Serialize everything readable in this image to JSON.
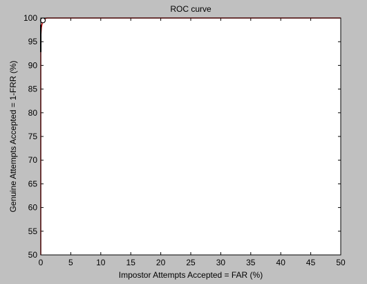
{
  "chart_data": {
    "type": "line",
    "title": "ROC curve",
    "xlabel": "Impostor Attempts Accepted = FAR (%)",
    "ylabel": "Genuine Attempts Accepted = 1-FRR (%)",
    "xlim": [
      0,
      50
    ],
    "ylim": [
      50,
      100
    ],
    "xticks": [
      0,
      5,
      10,
      15,
      20,
      25,
      30,
      35,
      40,
      45,
      50
    ],
    "yticks": [
      50,
      55,
      60,
      65,
      70,
      75,
      80,
      85,
      90,
      95,
      100
    ],
    "grid": false,
    "series": [
      {
        "color": "#cc0000",
        "x": [
          0,
          0,
          0,
          0.1,
          0.3,
          0.5,
          1,
          2,
          5,
          10,
          20,
          30,
          40,
          50
        ],
        "y": [
          50,
          93,
          96,
          98,
          99.3,
          99.8,
          100,
          100,
          100,
          100,
          100,
          100,
          100,
          100
        ]
      },
      {
        "color": "#000000",
        "x": [
          0,
          0
        ],
        "y": [
          92.8,
          98.6
        ]
      }
    ],
    "marker": {
      "x": 0.35,
      "y": 99.5,
      "style": "circle"
    }
  },
  "colors": {
    "background": "#c0c0c0",
    "plot_area": "#ffffff",
    "roc_line": "#cc0000"
  }
}
